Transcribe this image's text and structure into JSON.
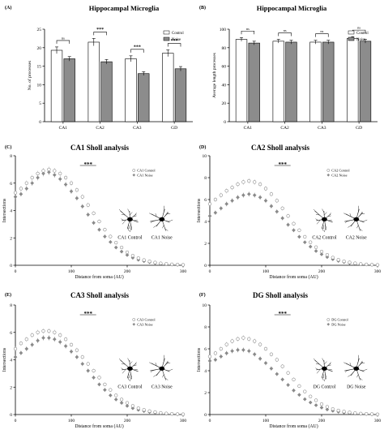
{
  "panels": {
    "A": {
      "letter": "(A)",
      "title": "Hippocampal Microglia",
      "ylabel": "No. of processes",
      "ylim": [
        0,
        25
      ],
      "yticks": [
        0,
        5,
        10,
        15,
        20,
        25
      ],
      "legend": [
        "Control",
        "Noise"
      ],
      "significance": [
        "ns",
        "***",
        "***",
        "***"
      ]
    },
    "B": {
      "letter": "(B)",
      "title": "Hippocampal Microglia",
      "ylabel": "Average length processes",
      "ylim": [
        0,
        100
      ],
      "yticks": [
        0,
        20,
        40,
        60,
        80,
        100
      ],
      "legend": [
        "Control",
        "Noise"
      ],
      "significance": [
        "ns",
        "ns",
        "ns",
        "ns"
      ]
    },
    "C": {
      "letter": "(C)",
      "title": "CA1 Sholl analysis",
      "ymax": 8,
      "yticks": [
        0,
        2,
        4,
        6,
        8
      ],
      "legend": [
        "CA1 Control",
        "CA1 Noise"
      ],
      "captions": [
        "CA1 Control",
        "CA1 Noise"
      ],
      "significance": "***"
    },
    "D": {
      "letter": "(D)",
      "title": "CA2 Sholl analysis",
      "ymax": 10,
      "yticks": [
        0,
        2,
        4,
        6,
        8,
        10
      ],
      "legend": [
        "CA2 Control",
        "CA2 Noise"
      ],
      "captions": [
        "CA2 Control",
        "CA2 Noise"
      ],
      "significance": "***"
    },
    "E": {
      "letter": "(E)",
      "title": "CA3 Sholl analysis",
      "ymax": 8,
      "yticks": [
        0,
        2,
        4,
        6,
        8
      ],
      "legend": [
        "CA3 Control",
        "CA3 Noise"
      ],
      "captions": [
        "CA3 Control",
        "CA3 Noise"
      ],
      "significance": "***"
    },
    "F": {
      "letter": "(F)",
      "title": "DG Sholl analysis",
      "ymax": 10,
      "yticks": [
        0,
        2,
        4,
        6,
        8,
        10
      ],
      "legend": [
        "DG Control",
        "DG Noise"
      ],
      "captions": [
        "DG Control",
        "DG Noise"
      ],
      "significance": "***"
    },
    "sholl_common": {
      "xlabel": "Distance from soma (AU)",
      "ylabel": "Intersections",
      "xticks": [
        0,
        100,
        200,
        300
      ]
    }
  },
  "chart_data": [
    {
      "type": "bar",
      "panel": "A",
      "categories": [
        "CA1",
        "CA2",
        "CA3",
        "GD"
      ],
      "series": [
        {
          "name": "Control",
          "values": [
            19.3,
            21.5,
            17.0,
            18.5
          ],
          "errors": [
            0.9,
            1.0,
            0.8,
            0.9
          ]
        },
        {
          "name": "Noise",
          "values": [
            17.0,
            16.2,
            13.0,
            14.3
          ],
          "errors": [
            0.6,
            0.6,
            0.5,
            0.6
          ]
        }
      ],
      "ylabel": "No. of processes",
      "ylim": [
        0,
        25
      ]
    },
    {
      "type": "bar",
      "panel": "B",
      "categories": [
        "CA1",
        "CA2",
        "CA3",
        "GD"
      ],
      "series": [
        {
          "name": "Control",
          "values": [
            89,
            87,
            86,
            90
          ],
          "errors": [
            2,
            2,
            2,
            2
          ]
        },
        {
          "name": "Noise",
          "values": [
            85,
            86,
            86,
            87
          ],
          "errors": [
            2,
            2,
            2,
            2
          ]
        }
      ],
      "ylabel": "Average length processes",
      "ylim": [
        0,
        100
      ]
    },
    {
      "type": "scatter",
      "panel": "C",
      "x": [
        0,
        10,
        20,
        30,
        40,
        50,
        60,
        70,
        80,
        90,
        100,
        110,
        120,
        130,
        140,
        150,
        160,
        170,
        180,
        190,
        200,
        210,
        220,
        230,
        240,
        250,
        260,
        270,
        280,
        290,
        300
      ],
      "series": [
        {
          "name": "CA1 Control",
          "values": [
            5.3,
            5.6,
            6.0,
            6.4,
            6.7,
            6.9,
            7.0,
            6.9,
            6.7,
            6.4,
            6.0,
            5.5,
            5.0,
            4.4,
            3.8,
            3.2,
            2.6,
            2.1,
            1.65,
            1.3,
            0.95,
            0.7,
            0.52,
            0.38,
            0.28,
            0.2,
            0.14,
            0.1,
            0.07,
            0.05,
            0.03
          ]
        },
        {
          "name": "CA1 Noise",
          "values": [
            5.0,
            5.2,
            5.6,
            6.0,
            6.4,
            6.7,
            6.8,
            6.6,
            6.3,
            5.9,
            5.4,
            4.9,
            4.3,
            3.7,
            3.1,
            2.6,
            2.1,
            1.7,
            1.3,
            1.0,
            0.75,
            0.55,
            0.4,
            0.3,
            0.22,
            0.16,
            0.11,
            0.08,
            0.05,
            0.03,
            0.02
          ]
        }
      ],
      "xlabel": "Distance from soma (AU)",
      "ylabel": "Intersections",
      "xlim": [
        0,
        300
      ],
      "ylim": [
        0,
        8
      ]
    },
    {
      "type": "scatter",
      "panel": "D",
      "x": [
        0,
        10,
        20,
        30,
        40,
        50,
        60,
        70,
        80,
        90,
        100,
        110,
        120,
        130,
        140,
        150,
        160,
        170,
        180,
        190,
        200,
        210,
        220,
        230,
        240,
        250,
        260,
        270,
        280,
        290,
        300
      ],
      "series": [
        {
          "name": "CA2 Control",
          "values": [
            5.6,
            6.0,
            6.4,
            6.8,
            7.1,
            7.4,
            7.6,
            7.7,
            7.6,
            7.4,
            7.0,
            6.5,
            5.9,
            5.2,
            4.5,
            3.8,
            3.2,
            2.6,
            2.1,
            1.65,
            1.25,
            0.95,
            0.7,
            0.5,
            0.36,
            0.26,
            0.18,
            0.12,
            0.08,
            0.05,
            0.03
          ]
        },
        {
          "name": "CA2 Noise",
          "values": [
            4.5,
            4.8,
            5.2,
            5.6,
            5.9,
            6.2,
            6.4,
            6.5,
            6.4,
            6.2,
            5.9,
            5.4,
            4.9,
            4.3,
            3.7,
            3.2,
            2.6,
            2.1,
            1.7,
            1.3,
            1.0,
            0.75,
            0.55,
            0.4,
            0.29,
            0.2,
            0.14,
            0.1,
            0.07,
            0.04,
            0.02
          ]
        }
      ],
      "xlabel": "Distance from soma (AU)",
      "ylabel": "Intersections",
      "xlim": [
        0,
        300
      ],
      "ylim": [
        0,
        10
      ]
    },
    {
      "type": "scatter",
      "panel": "E",
      "x": [
        0,
        10,
        20,
        30,
        40,
        50,
        60,
        70,
        80,
        90,
        100,
        110,
        120,
        130,
        140,
        150,
        160,
        170,
        180,
        190,
        200,
        210,
        220,
        230,
        240,
        250,
        260,
        270,
        280,
        290,
        300
      ],
      "series": [
        {
          "name": "CA3 Control",
          "values": [
            4.8,
            5.2,
            5.5,
            5.8,
            6.0,
            6.1,
            6.1,
            6.0,
            5.8,
            5.5,
            5.1,
            4.7,
            4.2,
            3.7,
            3.2,
            2.7,
            2.2,
            1.8,
            1.4,
            1.1,
            0.85,
            0.63,
            0.46,
            0.34,
            0.25,
            0.18,
            0.12,
            0.08,
            0.05,
            0.03,
            0.02
          ]
        },
        {
          "name": "CA3 Noise",
          "values": [
            4.2,
            4.5,
            4.8,
            5.1,
            5.4,
            5.6,
            5.6,
            5.5,
            5.3,
            5.0,
            4.6,
            4.2,
            3.7,
            3.2,
            2.7,
            2.2,
            1.8,
            1.4,
            1.1,
            0.85,
            0.63,
            0.46,
            0.34,
            0.25,
            0.18,
            0.13,
            0.09,
            0.06,
            0.04,
            0.02,
            0.01
          ]
        }
      ],
      "xlabel": "Distance from soma (AU)",
      "ylabel": "Intersections",
      "xlim": [
        0,
        300
      ],
      "ylim": [
        0,
        8
      ]
    },
    {
      "type": "scatter",
      "panel": "F",
      "x": [
        0,
        10,
        20,
        30,
        40,
        50,
        60,
        70,
        80,
        90,
        100,
        110,
        120,
        130,
        140,
        150,
        160,
        170,
        180,
        190,
        200,
        210,
        220,
        230,
        240,
        250,
        260,
        270,
        280,
        290,
        300
      ],
      "series": [
        {
          "name": "DG Control",
          "values": [
            5.3,
            5.6,
            6.0,
            6.4,
            6.7,
            6.9,
            7.0,
            6.9,
            6.7,
            6.4,
            6.0,
            5.5,
            5.0,
            4.4,
            3.8,
            3.2,
            2.6,
            2.1,
            1.65,
            1.3,
            0.95,
            0.7,
            0.5,
            0.37,
            0.27,
            0.19,
            0.13,
            0.09,
            0.06,
            0.04,
            0.02
          ]
        },
        {
          "name": "DG Noise",
          "values": [
            4.9,
            5.0,
            5.3,
            5.6,
            5.8,
            5.9,
            5.9,
            5.8,
            5.5,
            5.1,
            4.7,
            4.2,
            3.7,
            3.2,
            2.7,
            2.2,
            1.8,
            1.4,
            1.1,
            0.85,
            0.63,
            0.46,
            0.34,
            0.25,
            0.18,
            0.13,
            0.09,
            0.06,
            0.04,
            0.02,
            0.01
          ]
        }
      ],
      "xlabel": "Distance from soma (AU)",
      "ylabel": "Intersections",
      "xlim": [
        0,
        300
      ],
      "ylim": [
        0,
        10
      ]
    }
  ]
}
